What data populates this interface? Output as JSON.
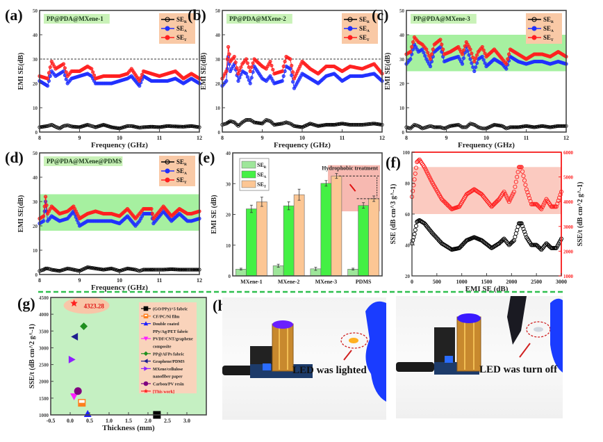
{
  "figure": {
    "separator_color": "#2fbf4f",
    "colors": {
      "SE_R": "#000000",
      "SE_A": "#1f2fff",
      "SE_T": "#ff1f1f",
      "legend_bg": "#f9c9a6",
      "label_bg": "#c9f2b8",
      "band_green": "#a6f0a0",
      "band_red": "#f6b1a8"
    }
  },
  "chart_data": [
    {
      "id": "a",
      "panel_label": "(a)",
      "type": "line",
      "sample_label": "PP@PDA@MXene-1",
      "xlabel": "Frequency (GHz)",
      "ylabel": "EMI SE(dB)",
      "xlim": [
        8,
        12
      ],
      "ylim": [
        0,
        50
      ],
      "xticks": [
        "8",
        "9",
        "10",
        "11",
        "12"
      ],
      "yticks": [
        "0",
        "10",
        "20",
        "30",
        "40",
        "50"
      ],
      "reference_line": 30,
      "legend": [
        "SE_R",
        "SE_A",
        "SE_T"
      ],
      "legend_position": "top-right",
      "x": [
        8.0,
        8.2,
        8.3,
        8.4,
        8.5,
        8.6,
        8.7,
        8.8,
        9.0,
        9.2,
        9.3,
        9.4,
        9.6,
        9.8,
        10.0,
        10.2,
        10.3,
        10.5,
        10.6,
        10.8,
        11.0,
        11.2,
        11.4,
        11.6,
        11.8,
        12.0
      ],
      "series": [
        {
          "name": "SE_R",
          "values": [
            2.0,
            2.5,
            3.0,
            2.2,
            1.5,
            2.5,
            2.8,
            2.3,
            2.0,
            3.0,
            2.5,
            2.0,
            3.0,
            2.0,
            1.5,
            2.5,
            2.5,
            1.8,
            2.0,
            2.2,
            2.0,
            2.5,
            2.3,
            2.2,
            2.5,
            2.0
          ]
        },
        {
          "name": "SE_A",
          "values": [
            21,
            19,
            25,
            23,
            24,
            25,
            20,
            22,
            23,
            24,
            23,
            20,
            20,
            20,
            21,
            22,
            23,
            19,
            23,
            21,
            21,
            21,
            22,
            20,
            22,
            20
          ]
        },
        {
          "name": "SE_T",
          "values": [
            23,
            22,
            29,
            26,
            27,
            28,
            23,
            25,
            25,
            27,
            26,
            22,
            23,
            23,
            23,
            24,
            26,
            21,
            25,
            24,
            23,
            24,
            25,
            22,
            24,
            22
          ]
        }
      ]
    },
    {
      "id": "b",
      "panel_label": "(b)",
      "type": "line",
      "sample_label": "PP@PDA@MXene-2",
      "xlabel": "Frequency (GHz)",
      "ylabel": "EMI SE(dB)",
      "xlim": [
        8,
        12
      ],
      "ylim": [
        0,
        50
      ],
      "xticks": [
        "8",
        "9",
        "10",
        "11",
        "12"
      ],
      "yticks": [
        "0",
        "10",
        "20",
        "30",
        "40",
        "50"
      ],
      "reference_line": 30,
      "legend": [
        "SE_R",
        "SE_A",
        "SE_T"
      ],
      "legend_position": "top-right",
      "x": [
        8.0,
        8.1,
        8.15,
        8.2,
        8.3,
        8.4,
        8.5,
        8.6,
        8.7,
        8.8,
        9.0,
        9.1,
        9.2,
        9.3,
        9.5,
        9.6,
        9.7,
        9.8,
        10.0,
        10.2,
        10.4,
        10.6,
        10.8,
        11.0,
        11.2,
        11.5,
        11.8,
        12.0
      ],
      "series": [
        {
          "name": "SE_R",
          "values": [
            3,
            3.5,
            4,
            4.5,
            4,
            2.5,
            4,
            5,
            5,
            4,
            3.5,
            5,
            4.5,
            3,
            3.5,
            4,
            3.5,
            2.5,
            2,
            3.5,
            2.5,
            3,
            3,
            3.5,
            3,
            3,
            3.5,
            3
          ]
        },
        {
          "name": "SE_A",
          "values": [
            19,
            21,
            31,
            25,
            28,
            21,
            25,
            24,
            20,
            27,
            22,
            21,
            23,
            20,
            21,
            27,
            26,
            18,
            24,
            22,
            20,
            23,
            24,
            21,
            23,
            23,
            24,
            21
          ]
        },
        {
          "name": "SE_T",
          "values": [
            22,
            25,
            35,
            29,
            31,
            24,
            28,
            30,
            25,
            30,
            27,
            26,
            29,
            24,
            25,
            31,
            30,
            22,
            29,
            26,
            24,
            27,
            27,
            25,
            27,
            26,
            28,
            24
          ]
        }
      ]
    },
    {
      "id": "c",
      "panel_label": "(c)",
      "type": "line",
      "sample_label": "PP@PDA@MXene-3",
      "xlabel": "Frequency (GHz)",
      "ylabel": "EMI SE(dB)",
      "xlim": [
        8,
        12
      ],
      "ylim": [
        0,
        50
      ],
      "xticks": [
        "8",
        "9",
        "10",
        "11",
        "12"
      ],
      "yticks": [
        "0",
        "10",
        "20",
        "30",
        "40",
        "50"
      ],
      "band": [
        25,
        40
      ],
      "legend": [
        "SE_R",
        "SE_A",
        "SE_T"
      ],
      "legend_position": "top-right",
      "x": [
        8.0,
        8.1,
        8.2,
        8.3,
        8.4,
        8.5,
        8.6,
        8.7,
        8.85,
        8.95,
        9.1,
        9.3,
        9.4,
        9.5,
        9.6,
        9.7,
        9.8,
        9.9,
        10.0,
        10.2,
        10.4,
        10.5,
        10.6,
        10.8,
        11.0,
        11.2,
        11.4,
        11.6,
        11.8,
        12.0
      ],
      "series": [
        {
          "name": "SE_R",
          "values": [
            2,
            1.5,
            3,
            2.5,
            1.5,
            2,
            2.5,
            2,
            2,
            1.5,
            2.5,
            3,
            2,
            2,
            3.5,
            3,
            2,
            1.5,
            1.5,
            3,
            2.5,
            1.5,
            2,
            2,
            2.5,
            2,
            2.5,
            2,
            2.5,
            2.5
          ]
        },
        {
          "name": "SE_A",
          "values": [
            28,
            30,
            36,
            33,
            34,
            30,
            27,
            33,
            35,
            29,
            30,
            31,
            28,
            35,
            30,
            25,
            30,
            31,
            27,
            30,
            28,
            26,
            31,
            29,
            28,
            29,
            29,
            28,
            29,
            28
          ]
        },
        {
          "name": "SE_T",
          "values": [
            32,
            33,
            39,
            37,
            36,
            34,
            30,
            36,
            38,
            32,
            33,
            35,
            32,
            37,
            34,
            29,
            33,
            35,
            31,
            34,
            30,
            28,
            34,
            32,
            30,
            32,
            32,
            31,
            33,
            31
          ]
        }
      ]
    },
    {
      "id": "d",
      "panel_label": "(d)",
      "type": "line",
      "sample_label": "PP@PDA@MXene@PDMS",
      "xlabel": "Frequency (GHz)",
      "ylabel": "EMI SE(dB)",
      "xlim": [
        8,
        12
      ],
      "ylim": [
        0,
        50
      ],
      "xticks": [
        "8",
        "9",
        "10",
        "11",
        "12"
      ],
      "yticks": [
        "0",
        "10",
        "20",
        "30",
        "40",
        "50"
      ],
      "band": [
        18,
        33
      ],
      "legend": [
        "SE_R",
        "SE_A",
        "SE_T"
      ],
      "legend_position": "top-right",
      "x": [
        8.0,
        8.1,
        8.15,
        8.2,
        8.3,
        8.5,
        8.7,
        8.85,
        9.0,
        9.2,
        9.4,
        9.6,
        9.8,
        10.0,
        10.2,
        10.4,
        10.5,
        10.6,
        10.8,
        10.85,
        11.1,
        11.3,
        11.5,
        11.7,
        11.8,
        12.0
      ],
      "series": [
        {
          "name": "SE_R",
          "values": [
            1.5,
            2,
            2.5,
            2.5,
            2,
            1.5,
            2.5,
            2,
            1.5,
            3,
            2.5,
            2,
            2.5,
            1.5,
            2.5,
            2,
            1.5,
            2,
            2,
            2,
            2,
            2.2,
            2,
            2,
            2,
            2
          ]
        },
        {
          "name": "SE_A",
          "values": [
            21,
            22,
            30,
            22,
            24,
            22,
            23,
            26,
            20,
            22,
            22,
            22,
            22,
            21,
            24,
            20,
            22,
            25,
            25,
            21,
            26,
            22,
            25,
            22,
            22,
            23
          ]
        },
        {
          "name": "SE_T",
          "values": [
            23,
            24,
            32,
            25,
            28,
            25,
            26,
            28,
            23,
            25,
            26,
            25,
            25,
            24,
            27,
            23,
            25,
            27,
            27,
            23,
            28,
            24,
            27,
            25,
            25,
            26
          ]
        }
      ]
    },
    {
      "id": "e",
      "panel_label": "(e)",
      "type": "bar",
      "xlabel": "",
      "ylabel": "EMI SE (dB)",
      "ylim": [
        0,
        40
      ],
      "yticks": [
        "0",
        "10",
        "20",
        "30",
        "40"
      ],
      "categories": [
        "MXene-1",
        "MXene-2",
        "MXene-3",
        "PDMS"
      ],
      "legend_position": "top-left",
      "annotation": "Hydrophobic treatment",
      "series": [
        {
          "name": "SE_R",
          "values": [
            2.2,
            3.3,
            2.3,
            2.2
          ],
          "errors": [
            0.3,
            0.5,
            0.5,
            0.3
          ],
          "color": "#9ee69a"
        },
        {
          "name": "SE_A",
          "values": [
            21.8,
            22.8,
            30.1,
            22.9
          ],
          "errors": [
            1.2,
            1.3,
            0.9,
            0.9
          ],
          "color": "#44f044"
        },
        {
          "name": "SE_T",
          "values": [
            24.1,
            26.4,
            32.5,
            25.1
          ],
          "errors": [
            1.5,
            1.8,
            0.8,
            0.9
          ],
          "color": "#fcc694"
        }
      ]
    },
    {
      "id": "f",
      "panel_label": "(f)",
      "type": "line",
      "xlabel": "EMI SE (dB)",
      "ylabel": "SSE (dB cm^3 g^-1)",
      "y2label": "SSE/t (dB cm^2 g^-1)",
      "xlim": [
        0,
        3000
      ],
      "ylim": [
        20,
        100
      ],
      "y2lim": [
        1000,
        6000
      ],
      "xticks": [
        "0",
        "500",
        "1000",
        "1500",
        "2000",
        "2500",
        "3000"
      ],
      "yticks": [
        "20",
        "40",
        "60",
        "80",
        "100"
      ],
      "y2ticks": [
        "1000",
        "2000",
        "3000",
        "4000",
        "5000",
        "6000"
      ],
      "band_y2": [
        3500,
        5400
      ],
      "x": [
        0,
        50,
        100,
        150,
        250,
        400,
        600,
        800,
        950,
        1100,
        1250,
        1400,
        1600,
        1750,
        1850,
        1950,
        2050,
        2150,
        2200,
        2300,
        2400,
        2500,
        2600,
        2700,
        2800,
        2900,
        3000
      ],
      "series": [
        {
          "name": "SSE",
          "axis": "left",
          "color": "#000000",
          "values": [
            41,
            47,
            55,
            56,
            54,
            48,
            41,
            37,
            38,
            43,
            45,
            43,
            38,
            41,
            44,
            40,
            43,
            54,
            54,
            45,
            40,
            40,
            37,
            41,
            38,
            38,
            44
          ]
        },
        {
          "name": "SSE/t",
          "axis": "right",
          "color": "#ff1f1f",
          "values": [
            4200,
            4900,
            5600,
            5700,
            5400,
            4800,
            4100,
            3700,
            3800,
            4300,
            4500,
            4300,
            3800,
            4100,
            4400,
            4000,
            4400,
            5400,
            5400,
            4500,
            3900,
            3900,
            3700,
            4100,
            3800,
            3800,
            4400
          ]
        }
      ]
    },
    {
      "id": "g",
      "panel_label": "(g)",
      "type": "scatter",
      "xlabel": "Thickness (mm)",
      "ylabel": "SSE/t (dB cm^2 g^-1)",
      "xlim": [
        -0.5,
        3.5
      ],
      "ylim": [
        1000,
        4500
      ],
      "xticks": [
        "-0.5",
        "0.0",
        "0.5",
        "1.0",
        "1.5",
        "2.0",
        "2.5",
        "3.0"
      ],
      "yticks": [
        "1000",
        "1500",
        "2000",
        "2500",
        "3000",
        "3500",
        "4000",
        "4500"
      ],
      "highlight_label": "4323.28",
      "legend_position": "top-right",
      "points": [
        {
          "name": "(GO/PPy)^5 fabric",
          "x": 2.23,
          "y": 1000,
          "marker": "square",
          "color": "#000000"
        },
        {
          "name": "CF/PC/Ni film",
          "x": 0.3,
          "y": 1360,
          "marker": "half-square",
          "color": "#ff7f1f"
        },
        {
          "name": "Double coated PPy/Ag/PET fabric",
          "x": 0.45,
          "y": 1030,
          "marker": "triangle-up",
          "color": "#1f1fff"
        },
        {
          "name": "PVDF/CNT/graphene composite",
          "x": 0.1,
          "y": 1550,
          "marker": "triangle-down",
          "color": "#ff1fff"
        },
        {
          "name": "PP@AFPs fabric",
          "x": 0.35,
          "y": 3640,
          "marker": "diamond",
          "color": "#1f8f1f"
        },
        {
          "name": "Graphene/PDMS",
          "x": 0.12,
          "y": 3330,
          "marker": "triangle-left",
          "color": "#1f1f8f"
        },
        {
          "name": "MXene/cellulose nanofiber paper",
          "x": 0.04,
          "y": 2650,
          "marker": "triangle-right",
          "color": "#8f1fff"
        },
        {
          "name": "Carbon/PV resin",
          "x": 0.2,
          "y": 1710,
          "marker": "circle",
          "color": "#800080"
        },
        {
          "name": "[This work]",
          "x": 0.1,
          "y": 4323.28,
          "marker": "star",
          "color": "#ff1f1f"
        }
      ]
    }
  ],
  "photos": {
    "panel_label": "(h)",
    "left_caption": "LED  was lighted",
    "right_caption": "LED was turn off"
  }
}
